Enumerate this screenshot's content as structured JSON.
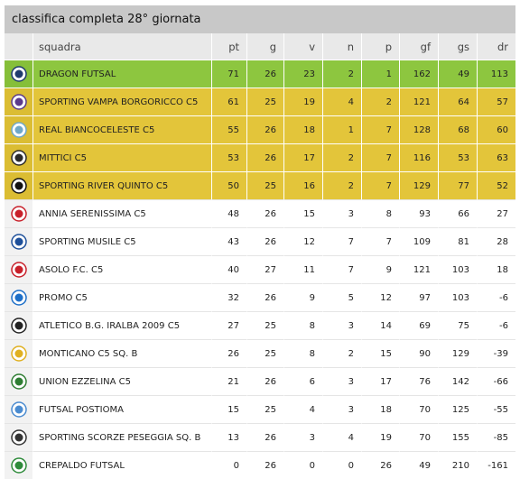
{
  "header": {
    "title": "classifica completa 28° giornata"
  },
  "columns": {
    "team": "squadra",
    "pt": "pt",
    "g": "g",
    "v": "v",
    "n": "n",
    "p": "p",
    "gf": "gf",
    "gs": "gs",
    "dr": "dr"
  },
  "rows": [
    {
      "team": "Dragon Futsal",
      "pt": "71",
      "g": "26",
      "v": "23",
      "n": "2",
      "p": "1",
      "gf": "162",
      "gs": "49",
      "dr": "113",
      "status": "green",
      "logo_color": "#1f3b6e"
    },
    {
      "team": "Sporting Vampa Borgoricco C5",
      "pt": "61",
      "g": "25",
      "v": "19",
      "n": "4",
      "p": "2",
      "gf": "121",
      "gs": "64",
      "dr": "57",
      "status": "yellow",
      "logo_color": "#5b3a8c"
    },
    {
      "team": "Real Biancoceleste C5",
      "pt": "55",
      "g": "26",
      "v": "18",
      "n": "1",
      "p": "7",
      "gf": "128",
      "gs": "68",
      "dr": "60",
      "status": "yellow",
      "logo_color": "#6fa8c8"
    },
    {
      "team": "Mittici C5",
      "pt": "53",
      "g": "26",
      "v": "17",
      "n": "2",
      "p": "7",
      "gf": "116",
      "gs": "53",
      "dr": "63",
      "status": "yellow",
      "logo_color": "#2a2a2a"
    },
    {
      "team": "Sporting River Quinto C5",
      "pt": "50",
      "g": "25",
      "v": "16",
      "n": "2",
      "p": "7",
      "gf": "129",
      "gs": "77",
      "dr": "52",
      "status": "yellow",
      "logo_color": "#111111"
    },
    {
      "team": "Annia Serenissima C5",
      "pt": "48",
      "g": "26",
      "v": "15",
      "n": "3",
      "p": "8",
      "gf": "93",
      "gs": "66",
      "dr": "27",
      "status": "plain",
      "logo_color": "#c8202a"
    },
    {
      "team": "Sporting Musile C5",
      "pt": "43",
      "g": "26",
      "v": "12",
      "n": "7",
      "p": "7",
      "gf": "109",
      "gs": "81",
      "dr": "28",
      "status": "plain",
      "logo_color": "#1d4f9a"
    },
    {
      "team": "Asolo F.C. C5",
      "pt": "40",
      "g": "27",
      "v": "11",
      "n": "7",
      "p": "9",
      "gf": "121",
      "gs": "103",
      "dr": "18",
      "status": "plain",
      "logo_color": "#c8202a"
    },
    {
      "team": "Promo C5",
      "pt": "32",
      "g": "26",
      "v": "9",
      "n": "5",
      "p": "12",
      "gf": "97",
      "gs": "103",
      "dr": "-6",
      "status": "plain",
      "logo_color": "#1d6fc8"
    },
    {
      "team": "Atletico B.G. Iralba 2009 C5",
      "pt": "27",
      "g": "25",
      "v": "8",
      "n": "3",
      "p": "14",
      "gf": "69",
      "gs": "75",
      "dr": "-6",
      "status": "plain",
      "logo_color": "#222222"
    },
    {
      "team": "Monticano C5 Sq. B",
      "pt": "26",
      "g": "25",
      "v": "8",
      "n": "2",
      "p": "15",
      "gf": "90",
      "gs": "129",
      "dr": "-39",
      "status": "plain",
      "logo_color": "#e0b020"
    },
    {
      "team": "Union Ezzelina C5",
      "pt": "21",
      "g": "26",
      "v": "6",
      "n": "3",
      "p": "17",
      "gf": "76",
      "gs": "142",
      "dr": "-66",
      "status": "plain",
      "logo_color": "#2e7d32"
    },
    {
      "team": "Futsal Postioma",
      "pt": "15",
      "g": "25",
      "v": "4",
      "n": "3",
      "p": "18",
      "gf": "70",
      "gs": "125",
      "dr": "-55",
      "status": "plain",
      "logo_color": "#4a8bd0"
    },
    {
      "team": "Sporting Scorze Peseggia Sq. B",
      "pt": "13",
      "g": "26",
      "v": "3",
      "n": "4",
      "p": "19",
      "gf": "70",
      "gs": "155",
      "dr": "-85",
      "status": "plain",
      "logo_color": "#333333"
    },
    {
      "team": "Crepaldo Futsal",
      "pt": "0",
      "g": "26",
      "v": "0",
      "n": "0",
      "p": "26",
      "gf": "49",
      "gs": "210",
      "dr": "-161",
      "status": "plain",
      "logo_color": "#2e8b3a"
    }
  ]
}
